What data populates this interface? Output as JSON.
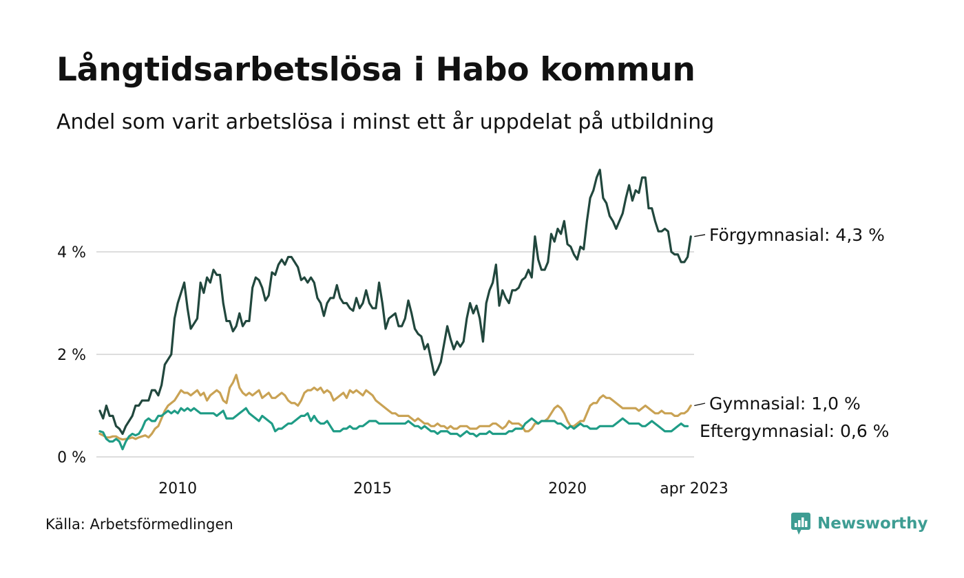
{
  "header": {
    "title": "Långtidsarbetslösa i Habo kommun",
    "subtitle": "Andel som varit arbetslösa i minst ett år uppdelat på utbildning"
  },
  "footer": {
    "source": "Källa: Arbetsförmedlingen",
    "brand": "Newsworthy"
  },
  "colors": {
    "text": "#111111",
    "grid": "#dddddd",
    "brand": "#3e9d93"
  },
  "chart_data": {
    "type": "line",
    "x_start": "2008-01",
    "x_end": "2023-04",
    "x_tick_values": [
      "2010-01",
      "2015-01",
      "2020-01",
      "2023-04"
    ],
    "x_tick_labels": [
      "2010",
      "2015",
      "2020",
      "apr 2023"
    ],
    "y_ticks": [
      0,
      2,
      4
    ],
    "y_tick_labels": [
      "0 %",
      "2 %",
      "4 %"
    ],
    "ylim": [
      0,
      5.8
    ],
    "grid": true,
    "series": [
      {
        "name": "Förgymnasial",
        "end_label": "Förgymnasial: 4,3 %",
        "color": "#21473d",
        "values": [
          0.9,
          0.75,
          1.0,
          0.8,
          0.8,
          0.6,
          0.55,
          0.45,
          0.6,
          0.7,
          0.8,
          1.0,
          1.0,
          1.1,
          1.1,
          1.1,
          1.3,
          1.3,
          1.2,
          1.4,
          1.8,
          1.9,
          2.0,
          2.7,
          3.0,
          3.2,
          3.4,
          2.9,
          2.5,
          2.6,
          2.7,
          3.4,
          3.2,
          3.5,
          3.4,
          3.65,
          3.55,
          3.55,
          3.0,
          2.65,
          2.65,
          2.45,
          2.55,
          2.8,
          2.55,
          2.65,
          2.65,
          3.3,
          3.5,
          3.45,
          3.3,
          3.05,
          3.15,
          3.6,
          3.55,
          3.75,
          3.85,
          3.75,
          3.9,
          3.9,
          3.8,
          3.7,
          3.45,
          3.5,
          3.4,
          3.5,
          3.4,
          3.1,
          3.0,
          2.75,
          3.0,
          3.1,
          3.1,
          3.35,
          3.1,
          3.0,
          3.0,
          2.9,
          2.85,
          3.1,
          2.9,
          3.0,
          3.25,
          3.0,
          2.9,
          2.9,
          3.4,
          3.0,
          2.5,
          2.7,
          2.75,
          2.8,
          2.55,
          2.55,
          2.7,
          3.05,
          2.8,
          2.5,
          2.4,
          2.35,
          2.1,
          2.2,
          1.9,
          1.6,
          1.7,
          1.85,
          2.2,
          2.55,
          2.3,
          2.1,
          2.25,
          2.15,
          2.25,
          2.7,
          3.0,
          2.8,
          2.95,
          2.7,
          2.25,
          3.0,
          3.25,
          3.4,
          3.75,
          2.95,
          3.25,
          3.1,
          3.0,
          3.25,
          3.25,
          3.3,
          3.45,
          3.5,
          3.65,
          3.5,
          4.3,
          3.85,
          3.65,
          3.65,
          3.8,
          4.35,
          4.2,
          4.45,
          4.35,
          4.6,
          4.15,
          4.1,
          3.95,
          3.85,
          4.1,
          4.05,
          4.6,
          5.05,
          5.2,
          5.45,
          5.6,
          5.05,
          4.95,
          4.7,
          4.6,
          4.45,
          4.6,
          4.75,
          5.05,
          5.3,
          5.0,
          5.2,
          5.15,
          5.45,
          5.45,
          4.85,
          4.85,
          4.6,
          4.4,
          4.4,
          4.45,
          4.4,
          4.0,
          3.95,
          3.95,
          3.8,
          3.8,
          3.9,
          4.3
        ]
      },
      {
        "name": "Gymnasial",
        "end_label": "Gymnasial: 1,0 %",
        "color": "#c9a254",
        "values": [
          0.45,
          0.42,
          0.38,
          0.38,
          0.4,
          0.4,
          0.36,
          0.34,
          0.35,
          0.36,
          0.38,
          0.35,
          0.38,
          0.4,
          0.42,
          0.38,
          0.45,
          0.55,
          0.6,
          0.75,
          0.9,
          1.0,
          1.05,
          1.1,
          1.2,
          1.3,
          1.25,
          1.25,
          1.2,
          1.25,
          1.3,
          1.2,
          1.25,
          1.1,
          1.2,
          1.25,
          1.3,
          1.25,
          1.1,
          1.05,
          1.35,
          1.45,
          1.6,
          1.35,
          1.25,
          1.2,
          1.25,
          1.2,
          1.25,
          1.3,
          1.15,
          1.2,
          1.25,
          1.15,
          1.15,
          1.2,
          1.25,
          1.2,
          1.1,
          1.05,
          1.05,
          1.0,
          1.1,
          1.25,
          1.3,
          1.3,
          1.35,
          1.3,
          1.35,
          1.25,
          1.3,
          1.25,
          1.1,
          1.15,
          1.2,
          1.25,
          1.15,
          1.3,
          1.25,
          1.3,
          1.25,
          1.2,
          1.3,
          1.25,
          1.2,
          1.1,
          1.05,
          1.0,
          0.95,
          0.9,
          0.85,
          0.85,
          0.8,
          0.8,
          0.8,
          0.8,
          0.75,
          0.7,
          0.75,
          0.7,
          0.65,
          0.65,
          0.6,
          0.6,
          0.65,
          0.6,
          0.6,
          0.55,
          0.6,
          0.55,
          0.55,
          0.6,
          0.6,
          0.6,
          0.55,
          0.55,
          0.55,
          0.6,
          0.6,
          0.6,
          0.6,
          0.65,
          0.65,
          0.6,
          0.55,
          0.6,
          0.7,
          0.65,
          0.65,
          0.65,
          0.6,
          0.5,
          0.5,
          0.55,
          0.65,
          0.65,
          0.7,
          0.7,
          0.75,
          0.85,
          0.95,
          1.0,
          0.95,
          0.85,
          0.7,
          0.6,
          0.6,
          0.65,
          0.7,
          0.7,
          0.85,
          1.0,
          1.05,
          1.05,
          1.15,
          1.2,
          1.15,
          1.15,
          1.1,
          1.05,
          1.0,
          0.95,
          0.95,
          0.95,
          0.95,
          0.95,
          0.9,
          0.95,
          1.0,
          0.95,
          0.9,
          0.85,
          0.85,
          0.9,
          0.85,
          0.85,
          0.85,
          0.8,
          0.8,
          0.85,
          0.85,
          0.9,
          1.0
        ]
      },
      {
        "name": "Eftergymnasial",
        "end_label": "Eftergymnasial: 0,6 %",
        "color": "#1f9c86",
        "values": [
          0.5,
          0.48,
          0.35,
          0.3,
          0.3,
          0.35,
          0.3,
          0.15,
          0.3,
          0.4,
          0.45,
          0.42,
          0.45,
          0.55,
          0.7,
          0.75,
          0.7,
          0.7,
          0.8,
          0.8,
          0.85,
          0.9,
          0.85,
          0.9,
          0.85,
          0.95,
          0.9,
          0.95,
          0.9,
          0.95,
          0.9,
          0.85,
          0.85,
          0.85,
          0.85,
          0.85,
          0.8,
          0.85,
          0.9,
          0.75,
          0.75,
          0.75,
          0.8,
          0.85,
          0.9,
          0.95,
          0.85,
          0.8,
          0.75,
          0.7,
          0.8,
          0.75,
          0.7,
          0.65,
          0.5,
          0.55,
          0.55,
          0.6,
          0.65,
          0.65,
          0.7,
          0.75,
          0.8,
          0.8,
          0.85,
          0.7,
          0.8,
          0.7,
          0.65,
          0.65,
          0.7,
          0.6,
          0.5,
          0.5,
          0.5,
          0.55,
          0.55,
          0.6,
          0.55,
          0.55,
          0.6,
          0.6,
          0.65,
          0.7,
          0.7,
          0.7,
          0.65,
          0.65,
          0.65,
          0.65,
          0.65,
          0.65,
          0.65,
          0.65,
          0.65,
          0.7,
          0.65,
          0.6,
          0.6,
          0.55,
          0.6,
          0.55,
          0.5,
          0.5,
          0.45,
          0.5,
          0.5,
          0.5,
          0.45,
          0.45,
          0.45,
          0.4,
          0.45,
          0.5,
          0.45,
          0.45,
          0.4,
          0.45,
          0.45,
          0.45,
          0.5,
          0.45,
          0.45,
          0.45,
          0.45,
          0.45,
          0.5,
          0.5,
          0.55,
          0.55,
          0.55,
          0.65,
          0.7,
          0.75,
          0.7,
          0.65,
          0.7,
          0.7,
          0.7,
          0.7,
          0.7,
          0.65,
          0.65,
          0.6,
          0.55,
          0.6,
          0.55,
          0.6,
          0.65,
          0.6,
          0.6,
          0.55,
          0.55,
          0.55,
          0.6,
          0.6,
          0.6,
          0.6,
          0.6,
          0.65,
          0.7,
          0.75,
          0.7,
          0.65,
          0.65,
          0.65,
          0.65,
          0.6,
          0.6,
          0.65,
          0.7,
          0.65,
          0.6,
          0.55,
          0.5,
          0.5,
          0.5,
          0.55,
          0.6,
          0.65,
          0.6,
          0.6
        ]
      }
    ]
  }
}
